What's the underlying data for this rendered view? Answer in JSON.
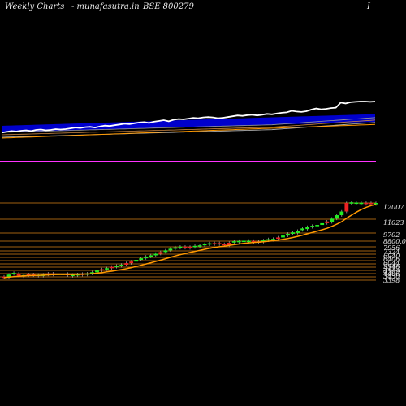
{
  "header": {
    "left": "Weekly Charts",
    "middle": "- munafasutra.in",
    "code": "BSE 800279",
    "right": "I"
  },
  "colors": {
    "background": "#000000",
    "up_candle": "#22ee22",
    "down_candle": "#ee2222",
    "ma_line": "#ff9900",
    "price_line": "#ffffff",
    "blue_band": "#0000cc",
    "grid_line": "#a0600f",
    "magenta_line": "#ff33ff"
  },
  "chart_data": {
    "type": "candlestick",
    "title": "Weekly Charts - munafasutra.in BSE 800279",
    "y_tick_labels": [
      "12007",
      "11023",
      "9702",
      "8800.00",
      "7956",
      "7324",
      "6940",
      "6406",
      "6044",
      "5546",
      "5123",
      "4709",
      "4406",
      "3450",
      "3398"
    ],
    "candle_colors": [
      "down",
      "up",
      "up",
      "down",
      "up",
      "down",
      "down",
      "up",
      "up",
      "down",
      "down",
      "up",
      "up",
      "down",
      "up",
      "up",
      "down",
      "up",
      "up",
      "up",
      "down",
      "up",
      "down",
      "up",
      "up",
      "down",
      "down",
      "up",
      "up",
      "up",
      "up",
      "up",
      "down",
      "up",
      "up",
      "up",
      "up",
      "down",
      "down",
      "up",
      "up",
      "up",
      "up",
      "down",
      "down",
      "down",
      "down",
      "up",
      "up",
      "up",
      "up",
      "down",
      "down",
      "up",
      "up",
      "up",
      "down",
      "up",
      "up",
      "up",
      "up",
      "up",
      "up",
      "up",
      "up",
      "up",
      "down",
      "up",
      "up",
      "up",
      "down",
      "up",
      "up",
      "up",
      "down",
      "down",
      "up"
    ],
    "price_index": [
      3450,
      3750,
      3880,
      3620,
      3580,
      3720,
      3660,
      3520,
      3680,
      3810,
      3740,
      3780,
      3780,
      3600,
      3660,
      3720,
      3780,
      3810,
      3950,
      4150,
      4300,
      4420,
      4580,
      4700,
      4820,
      5000,
      5180,
      5380,
      5560,
      5760,
      5900,
      6080,
      6280,
      6470,
      6660,
      6820,
      6900,
      6760,
      6880,
      6990,
      7050,
      7200,
      7290,
      7310,
      7200,
      7100,
      7420,
      7520,
      7560,
      7580,
      7560,
      7500,
      7440,
      7620,
      7760,
      7800,
      7960,
      8180,
      8380,
      8550,
      8800,
      9000,
      9240,
      9300,
      9400,
      9600,
      9800,
      10200,
      10600,
      11023,
      12007,
      11980,
      11960,
      11950,
      11940,
      11930,
      11920
    ],
    "ma_values": [
      3400,
      3460,
      3520,
      3560,
      3600,
      3640,
      3660,
      3670,
      3690,
      3720,
      3740,
      3760,
      3770,
      3760,
      3760,
      3770,
      3790,
      3820,
      3860,
      3920,
      3990,
      4070,
      4150,
      4240,
      4330,
      4440,
      4560,
      4690,
      4830,
      4980,
      5120,
      5270,
      5430,
      5590,
      5750,
      5910,
      6060,
      6180,
      6310,
      6430,
      6550,
      6670,
      6780,
      6880,
      6960,
      7020,
      7110,
      7200,
      7280,
      7350,
      7410,
      7460,
      7490,
      7540,
      7600,
      7660,
      7730,
      7820,
      7920,
      8030,
      8160,
      8300,
      8460,
      8610,
      8760,
      8920,
      9090,
      9310,
      9560,
      9850,
      10250,
      10600,
      10950,
      11250,
      11500,
      11700,
      11850
    ],
    "white_line": [
      0.18,
      0.2,
      0.22,
      0.21,
      0.23,
      0.24,
      0.22,
      0.25,
      0.26,
      0.24,
      0.25,
      0.27,
      0.26,
      0.27,
      0.29,
      0.31,
      0.3,
      0.32,
      0.33,
      0.31,
      0.34,
      0.36,
      0.35,
      0.37,
      0.39,
      0.41,
      0.4,
      0.42,
      0.44,
      0.45,
      0.43,
      0.46,
      0.48,
      0.5,
      0.47,
      0.51,
      0.53,
      0.52,
      0.54,
      0.56,
      0.55,
      0.57,
      0.58,
      0.57,
      0.55,
      0.56,
      0.58,
      0.6,
      0.62,
      0.61,
      0.63,
      0.64,
      0.62,
      0.64,
      0.66,
      0.65,
      0.67,
      0.69,
      0.7,
      0.74,
      0.72,
      0.71,
      0.73,
      0.77,
      0.8,
      0.78,
      0.79,
      0.81,
      0.82,
      0.95,
      0.93,
      0.96,
      0.97,
      0.98,
      0.98,
      0.97,
      0.98
    ]
  }
}
